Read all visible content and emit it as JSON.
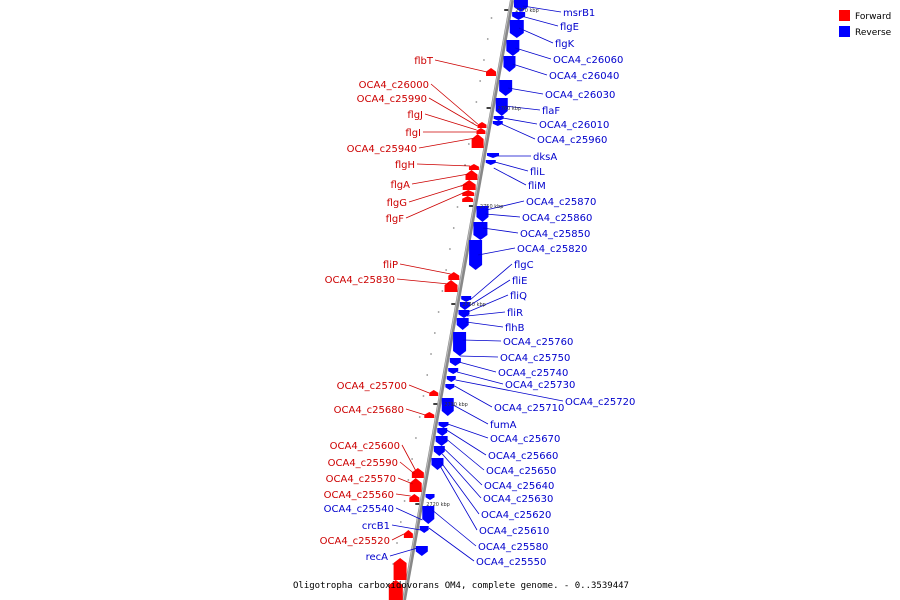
{
  "caption": "Oligotropha carboxidovorans OM4, complete genome. - 0..3539447",
  "legend": [
    {
      "label": "Forward",
      "color": "#ff0000"
    },
    {
      "label": "Reverse",
      "color": "#0000ff"
    }
  ],
  "colors": {
    "forward": "#ff0000",
    "reverse": "#0000ff",
    "forward_text": "#cc0000",
    "reverse_text": "#0000cc"
  },
  "kbp_markers": [
    "2770 kbp",
    "2760 kbp",
    "2750 kbp",
    "2740 kbp",
    "2730 kbp",
    "2720 kbp"
  ],
  "forward_labels": [
    "flbT",
    "OCA4_c26000",
    "OCA4_c25990",
    "flgJ",
    "flgI",
    "OCA4_c25940",
    "flgH",
    "flgA",
    "flgG",
    "flgF",
    "fliP",
    "OCA4_c25830",
    "OCA4_c25700",
    "OCA4_c25680",
    "OCA4_c25600",
    "OCA4_c25590",
    "OCA4_c25570",
    "OCA4_c25560",
    "OCA4_c25520"
  ],
  "reverse_left_labels": [
    "OCA4_c25540",
    "crcB1",
    "recA"
  ],
  "reverse_labels": [
    "msrB1",
    "flgE",
    "flgK",
    "OCA4_c26060",
    "OCA4_c26040",
    "OCA4_c26030",
    "flaF",
    "OCA4_c26010",
    "OCA4_c25960",
    "dksA",
    "fliL",
    "fliM",
    "OCA4_c25870",
    "OCA4_c25860",
    "OCA4_c25850",
    "OCA4_c25820",
    "flgC",
    "fliE",
    "fliQ",
    "fliR",
    "flhB",
    "OCA4_c25760",
    "OCA4_c25750",
    "OCA4_c25740",
    "OCA4_c25730",
    "OCA4_c25720",
    "OCA4_c25710",
    "fumA",
    "OCA4_c25670",
    "OCA4_c25660",
    "OCA4_c25650",
    "OCA4_c25640",
    "OCA4_c25630",
    "OCA4_c25620",
    "OCA4_c25610",
    "OCA4_c25580",
    "OCA4_c25550"
  ]
}
